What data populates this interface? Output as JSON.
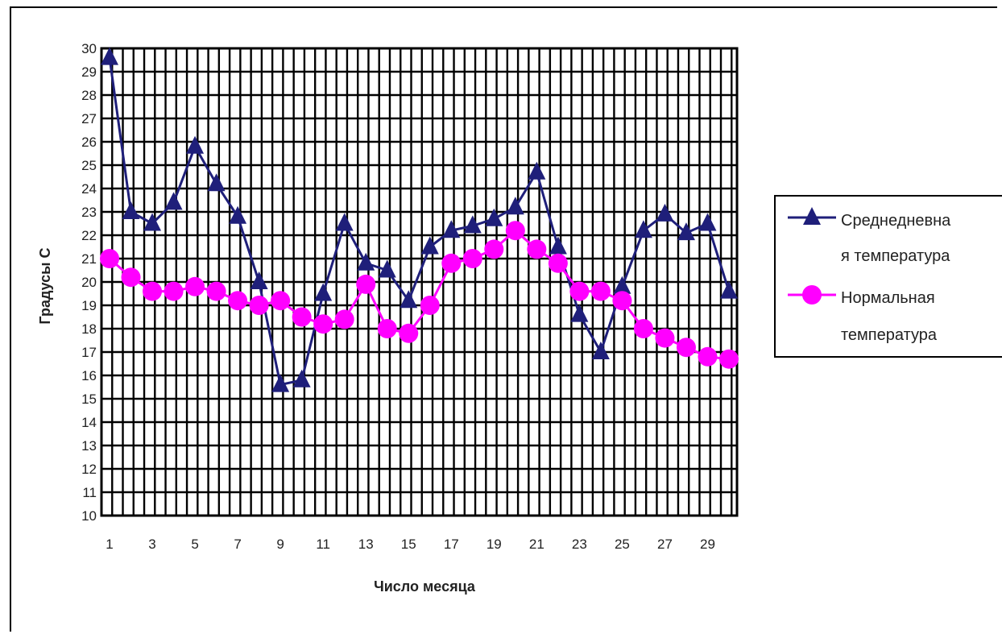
{
  "chart_data": {
    "type": "line",
    "title": "",
    "xlabel": "Число месяца",
    "ylabel": "Градусы С",
    "x": [
      1,
      2,
      3,
      4,
      5,
      6,
      7,
      8,
      9,
      10,
      11,
      12,
      13,
      14,
      15,
      16,
      17,
      18,
      19,
      20,
      21,
      22,
      23,
      24,
      25,
      26,
      27,
      28,
      29,
      30
    ],
    "x_tick_labels": [
      "1",
      "3",
      "5",
      "7",
      "9",
      "11",
      "13",
      "15",
      "17",
      "19",
      "21",
      "23",
      "25",
      "27",
      "29"
    ],
    "y_tick_labels": [
      "10",
      "11",
      "12",
      "13",
      "14",
      "15",
      "16",
      "17",
      "18",
      "19",
      "20",
      "21",
      "22",
      "23",
      "24",
      "25",
      "26",
      "27",
      "28",
      "29",
      "30"
    ],
    "ylim": [
      10,
      30
    ],
    "grid": true,
    "legend_position": "right",
    "series": [
      {
        "name": "Среднедневная температура",
        "legend_lines": [
          "Среднедневна",
          "я температура"
        ],
        "color": "#1f1f7a",
        "marker": "triangle",
        "values": [
          29.6,
          23.0,
          22.5,
          23.4,
          25.8,
          24.2,
          22.8,
          20.0,
          15.6,
          15.8,
          19.5,
          22.5,
          20.8,
          20.5,
          19.2,
          21.5,
          22.2,
          22.4,
          22.7,
          23.2,
          24.7,
          21.5,
          18.6,
          17.0,
          19.8,
          22.2,
          22.9,
          22.1,
          22.5,
          19.6
        ]
      },
      {
        "name": "Нормальная температура",
        "legend_lines": [
          "Нормальная",
          "температура"
        ],
        "color": "#ff00ff",
        "marker": "circle",
        "values": [
          21.0,
          20.2,
          19.6,
          19.6,
          19.8,
          19.6,
          19.2,
          19.0,
          19.2,
          18.5,
          18.2,
          18.4,
          19.9,
          18.0,
          17.8,
          19.0,
          20.8,
          21.0,
          21.4,
          22.2,
          21.4,
          20.8,
          19.6,
          19.6,
          19.2,
          18.0,
          17.6,
          17.2,
          16.8,
          16.7
        ]
      }
    ]
  }
}
